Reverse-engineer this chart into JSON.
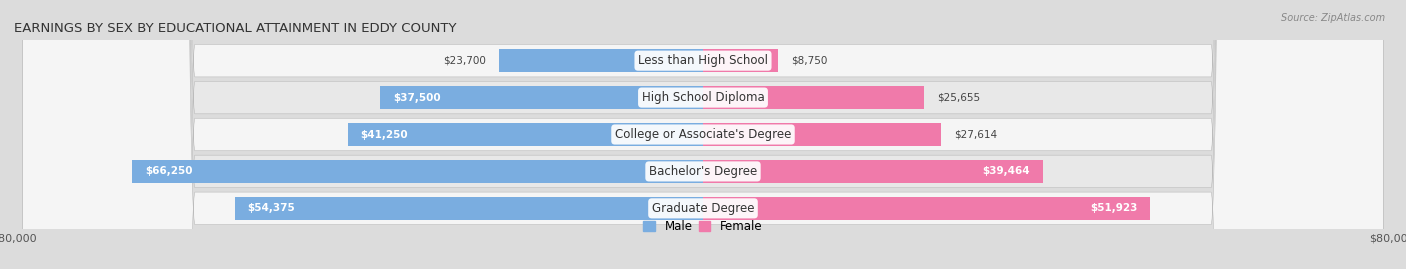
{
  "title": "EARNINGS BY SEX BY EDUCATIONAL ATTAINMENT IN EDDY COUNTY",
  "source": "Source: ZipAtlas.com",
  "categories": [
    "Less than High School",
    "High School Diploma",
    "College or Associate's Degree",
    "Bachelor's Degree",
    "Graduate Degree"
  ],
  "male_values": [
    23700,
    37500,
    41250,
    66250,
    54375
  ],
  "female_values": [
    8750,
    25655,
    27614,
    39464,
    51923
  ],
  "male_color": "#7aade0",
  "female_color": "#f07aaa",
  "male_label": "Male",
  "female_label": "Female",
  "max_val": 80000,
  "bar_height": 0.62,
  "bg_color": "#dcdcdc",
  "row_bg_light": "#f5f5f5",
  "row_bg_dark": "#e8e8e8",
  "title_fontsize": 9.5,
  "label_fontsize": 8.5,
  "value_fontsize": 7.5,
  "tick_fontsize": 8
}
